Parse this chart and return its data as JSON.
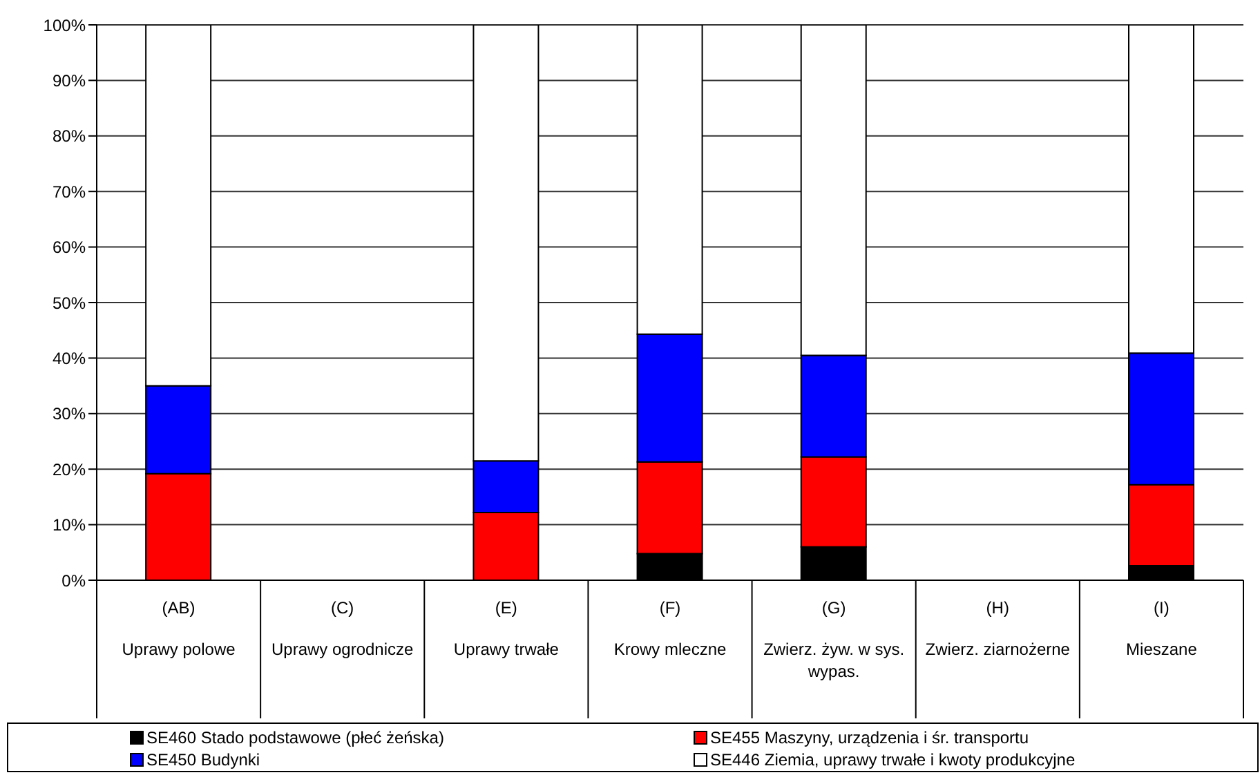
{
  "chart_data": {
    "type": "bar",
    "stacked": true,
    "categories": [
      "(AB)\nUprawy polowe",
      "(C)\nUprawy ogrodnicze",
      "(E)\nUprawy trwałe",
      "(F)\nKrowy mleczne",
      "(G)\nZwierz. żyw. w sys.\nwypas.",
      "(H)\nZwierz. ziarnożerne",
      "(I)\nMieszane"
    ],
    "series": [
      {
        "name": "SE460 Stado podstawowe (płeć żeńska)",
        "color": "#000000",
        "values": [
          null,
          null,
          null,
          4.8,
          6.0,
          null,
          2.6
        ]
      },
      {
        "name": "SE455 Maszyny, urządzenia i śr. transportu",
        "color": "#ff0000",
        "values": [
          19.2,
          null,
          12.2,
          16.5,
          16.2,
          null,
          14.6
        ]
      },
      {
        "name": "SE450 Budynki",
        "color": "#0000ff",
        "values": [
          15.8,
          null,
          9.3,
          23.0,
          18.3,
          null,
          23.7
        ]
      },
      {
        "name": "SE446 Ziemia, uprawy trwałe i kwoty produkcyjne",
        "color": "#ffffff",
        "values": [
          65.0,
          null,
          78.5,
          55.7,
          59.5,
          null,
          59.1
        ]
      }
    ],
    "ylim": [
      0,
      100
    ],
    "yticks": [
      {
        "value": 0,
        "label": "0%"
      },
      {
        "value": 10,
        "label": "10%"
      },
      {
        "value": 20,
        "label": "20%"
      },
      {
        "value": 30,
        "label": "30%"
      },
      {
        "value": 40,
        "label": "40%"
      },
      {
        "value": 50,
        "label": "50%"
      },
      {
        "value": 60,
        "label": "60%"
      },
      {
        "value": 70,
        "label": "70%"
      },
      {
        "value": 80,
        "label": "80%"
      },
      {
        "value": 90,
        "label": "90%"
      },
      {
        "value": 100,
        "label": "100%"
      }
    ],
    "grid": "y",
    "legend": "bottom"
  }
}
